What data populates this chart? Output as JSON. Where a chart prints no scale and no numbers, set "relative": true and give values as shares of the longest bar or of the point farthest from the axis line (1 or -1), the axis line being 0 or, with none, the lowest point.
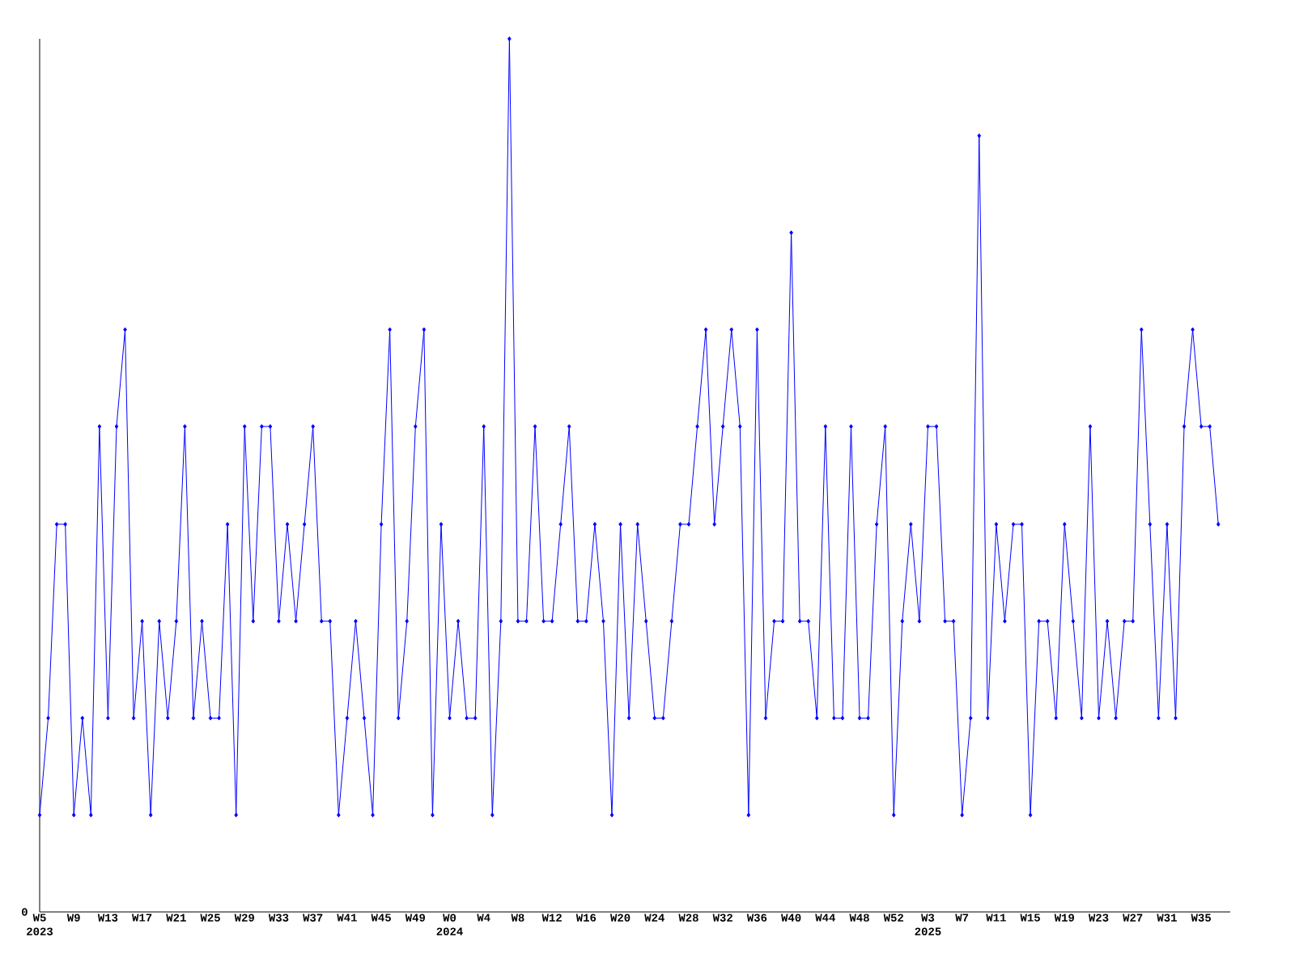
{
  "chart_data": {
    "type": "line",
    "relative": true,
    "color": "#0000ff",
    "marker": "diamond",
    "categories": [
      "W5",
      null,
      null,
      null,
      "W9",
      null,
      null,
      null,
      "W13",
      null,
      null,
      null,
      "W17",
      null,
      null,
      null,
      "W21",
      null,
      null,
      null,
      "W25",
      null,
      null,
      null,
      "W29",
      null,
      null,
      null,
      "W33",
      null,
      null,
      null,
      "W37",
      null,
      null,
      null,
      "W41",
      null,
      null,
      null,
      "W45",
      null,
      null,
      null,
      "W49",
      null,
      null,
      null,
      "W0",
      null,
      null,
      null,
      "W4",
      null,
      null,
      null,
      "W8",
      null,
      null,
      null,
      "W12",
      null,
      null,
      null,
      "W16",
      null,
      null,
      null,
      "W20",
      null,
      null,
      null,
      "W24",
      null,
      null,
      null,
      "W28",
      null,
      null,
      null,
      "W32",
      null,
      null,
      null,
      "W36",
      null,
      null,
      null,
      "W40",
      null,
      null,
      null,
      "W44",
      null,
      null,
      null,
      "W48",
      null,
      null,
      null,
      "W52",
      null,
      null,
      null,
      "W3",
      null,
      null,
      null,
      "W7",
      null,
      null,
      null,
      "W11",
      null,
      null,
      null,
      "W15",
      null,
      null,
      null,
      "W19",
      null,
      null,
      null,
      "W23",
      null,
      null,
      null,
      "W27",
      null,
      null,
      null,
      "W31",
      null,
      null,
      null,
      "W35",
      null,
      null
    ],
    "values": [
      0.111,
      0.222,
      0.444,
      0.444,
      0.111,
      0.222,
      0.111,
      0.556,
      0.222,
      0.556,
      0.667,
      0.222,
      0.333,
      0.111,
      0.333,
      0.222,
      0.333,
      0.556,
      0.222,
      0.333,
      0.222,
      0.222,
      0.444,
      0.111,
      0.556,
      0.333,
      0.556,
      0.556,
      0.333,
      0.444,
      0.333,
      0.444,
      0.556,
      0.333,
      0.333,
      0.111,
      0.222,
      0.333,
      0.222,
      0.111,
      0.444,
      0.667,
      0.222,
      0.333,
      0.556,
      0.667,
      0.111,
      0.444,
      0.222,
      0.333,
      0.222,
      0.222,
      0.556,
      0.111,
      0.333,
      1,
      0.333,
      0.333,
      0.556,
      0.333,
      0.333,
      0.444,
      0.556,
      0.333,
      0.333,
      0.444,
      0.333,
      0.111,
      0.444,
      0.222,
      0.444,
      0.333,
      0.222,
      0.222,
      0.333,
      0.444,
      0.444,
      0.556,
      0.667,
      0.444,
      0.556,
      0.667,
      0.556,
      0.111,
      0.667,
      0.222,
      0.333,
      0.333,
      0.778,
      0.333,
      0.333,
      0.222,
      0.556,
      0.222,
      0.222,
      0.556,
      0.222,
      0.222,
      0.444,
      0.556,
      0.111,
      0.333,
      0.444,
      0.333,
      0.556,
      0.556,
      0.333,
      0.333,
      0.111,
      0.222,
      0.889,
      0.222,
      0.444,
      0.333,
      0.444,
      0.444,
      0.111,
      0.333,
      0.333,
      0.222,
      0.444,
      0.333,
      0.222,
      0.556,
      0.222,
      0.333,
      0.222,
      0.333,
      0.333,
      0.667,
      0.444,
      0.222,
      0.444,
      0.222,
      0.556,
      0.667,
      0.556,
      0.556,
      0.444
    ],
    "annotations": [
      "0",
      "2023",
      "2024",
      "2025"
    ]
  }
}
